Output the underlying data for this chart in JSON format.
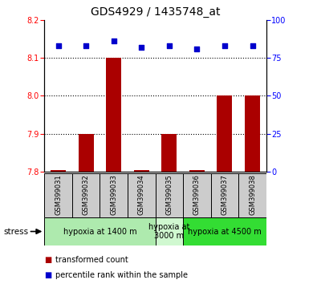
{
  "title": "GDS4929 / 1435748_at",
  "samples": [
    "GSM399031",
    "GSM399032",
    "GSM399033",
    "GSM399034",
    "GSM399035",
    "GSM399036",
    "GSM399037",
    "GSM399038"
  ],
  "red_values": [
    7.805,
    7.9,
    8.1,
    7.805,
    7.9,
    7.805,
    8.0,
    8.0
  ],
  "blue_values": [
    83,
    83,
    86,
    82,
    83,
    81,
    83,
    83
  ],
  "ylim_left": [
    7.8,
    8.2
  ],
  "ylim_right": [
    0,
    100
  ],
  "yticks_left": [
    7.8,
    7.9,
    8.0,
    8.1,
    8.2
  ],
  "yticks_right": [
    0,
    25,
    50,
    75,
    100
  ],
  "bar_color": "#aa0000",
  "dot_color": "#0000cc",
  "bar_width": 0.55,
  "dotted_gridlines": [
    7.9,
    8.0,
    8.1
  ],
  "bar_baseline": 7.8,
  "group_defs": [
    {
      "start": 0,
      "end": 3,
      "label": "hypoxia at 1400 m",
      "color": "#aeeaae"
    },
    {
      "start": 4,
      "end": 4,
      "label": "hypoxia at\n3000 m",
      "color": "#d0f8d0"
    },
    {
      "start": 5,
      "end": 7,
      "label": "hypoxia at 4500 m",
      "color": "#33dd33"
    }
  ],
  "sample_box_color": "#cccccc",
  "left_tick_color": "red",
  "right_tick_color": "blue",
  "grid_color": "black",
  "grid_linestyle": ":",
  "grid_linewidth": 0.8,
  "title_fontsize": 10,
  "tick_labelsize": 7,
  "sample_fontsize": 6,
  "group_fontsize": 7,
  "legend_fontsize": 7
}
